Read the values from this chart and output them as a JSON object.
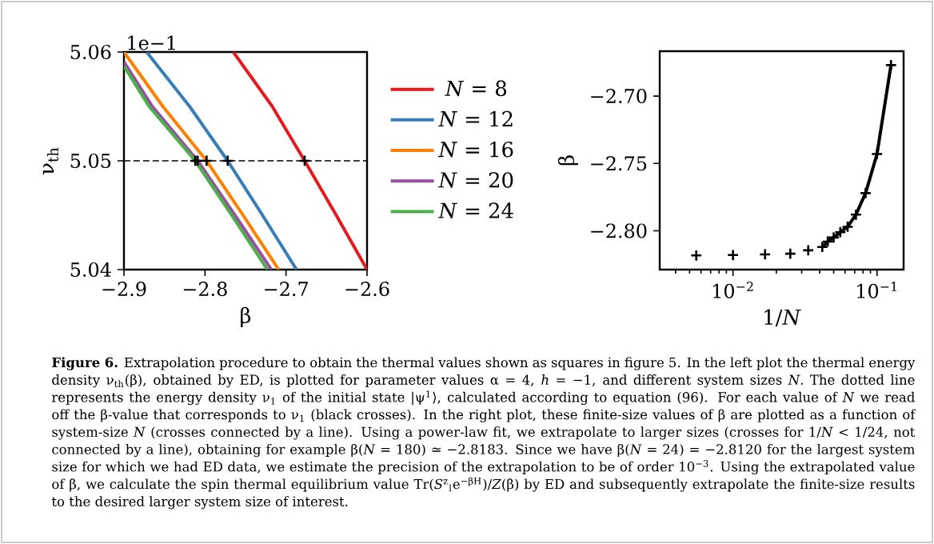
{
  "chart_data": [
    {
      "type": "line",
      "xlim": [
        -2.9,
        -2.6
      ],
      "ylim": [
        5.04,
        5.06
      ],
      "xticks": [
        {
          "value": -2.9,
          "label": "−2.9"
        },
        {
          "value": -2.8,
          "label": "−2.8"
        },
        {
          "value": -2.7,
          "label": "−2.7"
        },
        {
          "value": -2.6,
          "label": "−2.6"
        }
      ],
      "yticks": [
        5.04,
        5.05,
        5.06
      ],
      "xlabel": "β",
      "ylabel": "ν$_{th}$",
      "legend": "right",
      "ref_lines": [
        {
          "axis": "y",
          "value": 5.05,
          "color": "#000000",
          "line_style": "dashed"
        }
      ],
      "series": [
        {
          "name": "*N* = 8",
          "color": "#e41a1c",
          "x": [
            -2.765,
            -2.717,
            -2.677,
            -2.638,
            -2.6
          ],
          "values": [
            5.06,
            5.055,
            5.05,
            5.045,
            5.04
          ]
        },
        {
          "name": "*N* = 12",
          "color": "#377eb8",
          "x": [
            -2.872,
            -2.819,
            -2.772,
            -2.729,
            -2.687
          ],
          "values": [
            5.06,
            5.055,
            5.05,
            5.045,
            5.04
          ]
        },
        {
          "name": "*N* = 16",
          "color": "#ff7f00",
          "x": [
            -2.9,
            -2.852,
            -2.798,
            -2.753,
            -2.709
          ],
          "values": [
            5.06,
            5.055,
            5.05,
            5.045,
            5.04
          ]
        },
        {
          "name": "*N* = 20",
          "color": "#984ea3",
          "x": [
            -2.9,
            -2.865,
            -2.809,
            -2.763,
            -2.718
          ],
          "values": [
            5.0591,
            5.055,
            5.05,
            5.045,
            5.04
          ]
        },
        {
          "name": "*N* = 24",
          "color": "#4daf4a",
          "x": [
            -2.9,
            -2.869,
            -2.812,
            -2.767,
            -2.723
          ],
          "values": [
            5.0587,
            5.055,
            5.05,
            5.045,
            5.04
          ]
        },
        {
          "type": "scatter",
          "marker": "cross",
          "color": "#000000",
          "x": [
            -2.677,
            -2.772,
            -2.798,
            -2.809,
            -2.812
          ],
          "values": [
            5.05,
            5.05,
            5.05,
            5.05,
            5.05
          ]
        }
      ],
      "annotations": [
        "1e−1",
        "**Figure 6.** Extrapolation procedure to obtain the thermal values shown as squares in figure 5. In the left plot the thermal energy density ν$_{th}$(β), obtained by ED, is plotted for parameter values α = 4, *h* = −1, and different system sizes *N*. The dotted line represents the energy density ν$_{1}$ of the initial state |ψ$^{1}$⟩, calculated according to equation (96). For each value of *N* we read off the β-value that corresponds to ν$_{1}$ (black crosses). In the right plot, these finite-size values of β are plotted as a function of system-size *N* (crosses connected by a line). Using a power-law fit, we extrapolate to larger sizes (crosses for 1/*N* < 1/24, not connected by a line), obtaining for example β(*N* = 180) ≃ −2.8183. Since we have β(*N* = 24) = −2.8120 for the largest system size for which we had ED data, we estimate the precision of the extrapolation to be of order 10$^{−3}$. Using the extrapolated value of β, we calculate the spin thermal equilibrium value Tr(*S*$^{z}$$_{l}$e$^{−βH}$)/*Z*(β) by ED and subsequently extrapolate the finite-size results to the desired larger system size of interest."
      ]
    },
    {
      "type": "line",
      "log": "x",
      "xlim": [
        0.0031,
        0.153
      ],
      "ylim": [
        -2.8288,
        -2.6667
      ],
      "xticks": [
        {
          "value": 0.01,
          "label": "10$^{−2}$"
        },
        {
          "value": 0.1,
          "label": "10$^{−1}$"
        }
      ],
      "yticks": [
        {
          "value": -2.8,
          "label": "−2.80"
        },
        {
          "value": -2.75,
          "label": "−2.75"
        },
        {
          "value": -2.7,
          "label": "−2.70"
        }
      ],
      "xlabel": "1/*N*",
      "ylabel": "β",
      "series": [
        {
          "marker": "cross",
          "color": "#000000",
          "x": [
            0.125,
            0.1,
            0.0833,
            0.0714,
            0.0625,
            0.0556,
            0.05,
            0.0455,
            0.0417
          ],
          "values": [
            -2.677,
            -2.743,
            -2.772,
            -2.788,
            -2.797,
            -2.801,
            -2.805,
            -2.808,
            -2.812
          ]
        },
        {
          "type": "scatter",
          "marker": "cross",
          "color": "#000000",
          "x": [
            0.0333,
            0.025,
            0.0167,
            0.01,
            0.00556
          ],
          "values": [
            -2.8145,
            -2.817,
            -2.8175,
            -2.818,
            -2.8183
          ]
        }
      ]
    }
  ]
}
